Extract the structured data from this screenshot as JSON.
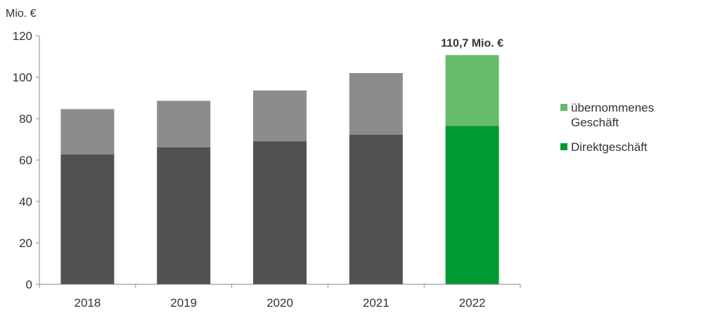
{
  "chart_data": {
    "type": "bar",
    "stacked": true,
    "unit_label": "Mio. €",
    "categories": [
      "2018",
      "2019",
      "2020",
      "2021",
      "2022"
    ],
    "series": [
      {
        "name": "Direktgeschäft",
        "values": [
          62.7,
          66.2,
          69.0,
          72.2,
          76.5
        ],
        "colors": [
          "#515151",
          "#515151",
          "#515151",
          "#515151",
          "#009933"
        ]
      },
      {
        "name": "übernommenes Geschäft",
        "values": [
          21.9,
          22.4,
          24.6,
          29.8,
          34.2
        ],
        "colors": [
          "#8c8c8c",
          "#8c8c8c",
          "#8c8c8c",
          "#8c8c8c",
          "#66bb6a"
        ]
      }
    ],
    "ylim": [
      0,
      120
    ],
    "yticks": [
      0,
      20,
      40,
      60,
      80,
      100,
      120
    ],
    "annotations": [
      {
        "category": "2022",
        "text": "110,7 Mio. €"
      }
    ],
    "legend": {
      "position": "right",
      "items": [
        {
          "label": "übernommenes Geschäft",
          "color": "#66bb6a"
        },
        {
          "label": "Direktgeschäft",
          "color": "#009933"
        }
      ]
    }
  }
}
